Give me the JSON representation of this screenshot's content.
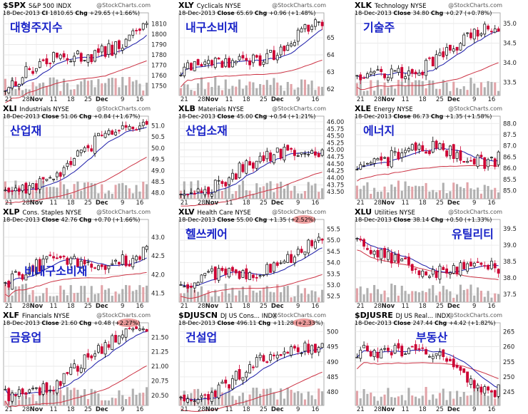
{
  "watermark": "@StockCharts.com",
  "colors": {
    "up": "#000000",
    "down": "#cc0033",
    "ma_short": "#1a1aa8",
    "ma_long": "#cc3344",
    "volume": "#b0b0b0",
    "label": "#1a24c8",
    "highlight": "#e05050"
  },
  "chart_data": [
    {
      "type": "candlestick",
      "symbol": "$SPX",
      "name": "S&P 500",
      "exchange": "INDX",
      "date": "18-Dec-2013",
      "price_label": "Cl",
      "price": "1810.65",
      "change": "+29.65 (+1.66%)",
      "korean_label": "대형주지수",
      "x_tick_labels": [
        "21",
        "28",
        "Nov",
        "11",
        "18",
        "25",
        "Dec",
        "9",
        "16"
      ],
      "y_tick_labels": [
        "1810",
        "1800",
        "1790",
        "1780",
        "1770",
        "1760",
        "1750"
      ],
      "y_ticks": [
        1810,
        1800,
        1790,
        1780,
        1770,
        1760,
        1750
      ],
      "ylim": [
        1742,
        1818
      ],
      "first_close": 1746,
      "last_close": 1810.6,
      "highlight_change": false
    },
    {
      "type": "candlestick",
      "symbol": "XLY",
      "name": "Cyclicals",
      "exchange": "NYSE",
      "date": "18-Dec-2013",
      "price_label": "Close",
      "price": "65.69",
      "change": "+0.96 (+1.48%)",
      "korean_label": "내구소비재",
      "x_tick_labels": [
        "21",
        "28",
        "Nov",
        "11",
        "18",
        "25",
        "Dec",
        "9",
        "16"
      ],
      "y_tick_labels": [
        "65",
        "64",
        "63",
        "62"
      ],
      "y_ticks": [
        65,
        64,
        63,
        62
      ],
      "ylim": [
        61.7,
        66.3
      ],
      "first_close": 62.5,
      "last_close": 65.7,
      "highlight_change": false
    },
    {
      "type": "candlestick",
      "symbol": "XLK",
      "name": "Technology",
      "exchange": "NYSE",
      "date": "18-Dec-2013",
      "price_label": "Close",
      "price": "34.80",
      "change": "+0.27 (+0.78%)",
      "korean_label": "기술주",
      "x_tick_labels": [
        "21",
        "28",
        "Nov",
        "11",
        "18",
        "25",
        "Dec",
        "9",
        "16"
      ],
      "y_tick_labels": [
        "35.0",
        "34.5",
        "34.0",
        "33.5"
      ],
      "y_ticks": [
        35.0,
        34.5,
        34.0,
        33.5
      ],
      "ylim": [
        33.2,
        35.2
      ],
      "first_close": 33.5,
      "last_close": 34.8,
      "highlight_change": false
    },
    {
      "type": "candlestick",
      "symbol": "XLI",
      "name": "Industrials",
      "exchange": "NYSE",
      "date": "18-Dec-2013",
      "price_label": "Close",
      "price": "51.06",
      "change": "+0.84 (+1.67%)",
      "korean_label": "산업재",
      "x_tick_labels": [
        "21",
        "28",
        "Nov",
        "11",
        "18",
        "25",
        "Dec",
        "9",
        "16"
      ],
      "y_tick_labels": [
        "51.0",
        "50.5",
        "50.0",
        "49.5",
        "49.0",
        "48.5",
        "48.0"
      ],
      "y_ticks": [
        51.0,
        50.5,
        50.0,
        49.5,
        49.0,
        48.5,
        48.0
      ],
      "ylim": [
        47.8,
        51.3
      ],
      "first_close": 48.1,
      "last_close": 51.06,
      "highlight_change": false
    },
    {
      "type": "candlestick",
      "symbol": "XLB",
      "name": "Materials",
      "exchange": "NYSE",
      "date": "18-Dec-2013",
      "price_label": "Close",
      "price": "45.00",
      "change": "+0.54 (+1.21%)",
      "korean_label": "산업소재",
      "x_tick_labels": [
        "21",
        "28",
        "Nov",
        "11",
        "18",
        "25",
        "Dec",
        "9",
        "16"
      ],
      "y_tick_labels": [
        "46.00",
        "45.75",
        "45.50",
        "45.25",
        "45.00",
        "44.75",
        "44.50",
        "44.25",
        "44.00",
        "43.75",
        "43.50"
      ],
      "y_ticks": [
        46.0,
        45.75,
        45.5,
        45.25,
        45.0,
        44.75,
        44.5,
        44.25,
        44.0,
        43.75,
        43.5
      ],
      "ylim": [
        43.3,
        46.1
      ],
      "first_close": 43.6,
      "last_close": 45.0,
      "highlight_change": false
    },
    {
      "type": "candlestick",
      "symbol": "XLE",
      "name": "Energy",
      "exchange": "NYSE",
      "date": "18-Dec-2013",
      "price_label": "Close",
      "price": "86.73",
      "change": "+1.35 (+1.58%)",
      "korean_label": "에너지",
      "x_tick_labels": [
        "21",
        "28",
        "Nov",
        "11",
        "18",
        "25",
        "Dec",
        "9",
        "16"
      ],
      "y_tick_labels": [
        "88.0",
        "87.5",
        "87.0",
        "86.5",
        "86.0",
        "85.5",
        "85.0"
      ],
      "y_ticks": [
        88.0,
        87.5,
        87.0,
        86.5,
        86.0,
        85.5,
        85.0
      ],
      "ylim": [
        84.7,
        88.2
      ],
      "first_close": 86.3,
      "last_close": 86.73,
      "highlight_change": false
    },
    {
      "type": "candlestick",
      "symbol": "XLP",
      "name": "Cons. Staples",
      "exchange": "NYSE",
      "date": "18-Dec-2013",
      "price_label": "Close",
      "price": "42.76",
      "change": "+0.70 (+1.66%)",
      "korean_label": "비내구소비재",
      "x_tick_labels": [
        "21",
        "28",
        "Nov",
        "11",
        "18",
        "25",
        "Dec",
        "9",
        "16"
      ],
      "y_tick_labels": [
        "43.0",
        "42.5",
        "42.0",
        "41.5"
      ],
      "y_ticks": [
        43.0,
        42.5,
        42.0,
        41.5
      ],
      "ylim": [
        41.3,
        43.4
      ],
      "first_close": 41.8,
      "last_close": 42.76,
      "highlight_change": false
    },
    {
      "type": "candlestick",
      "symbol": "XLV",
      "name": "Health Care",
      "exchange": "NYSE",
      "date": "18-Dec-2013",
      "price_label": "Close",
      "price": "55.00",
      "change": "+1.35 (+2.52%)",
      "korean_label": "헬쓰케어",
      "x_tick_labels": [
        "21",
        "28",
        "Nov",
        "11",
        "18",
        "25",
        "Dec",
        "9",
        "16"
      ],
      "y_tick_labels": [
        "55.5",
        "55.0",
        "54.5",
        "54.0",
        "53.5",
        "53.0",
        "52.5"
      ],
      "y_ticks": [
        55.5,
        55.0,
        54.5,
        54.0,
        53.5,
        53.0,
        52.5
      ],
      "ylim": [
        52.3,
        55.8
      ],
      "first_close": 52.6,
      "last_close": 55.0,
      "highlight_change": true
    },
    {
      "type": "candlestick",
      "symbol": "XLU",
      "name": "Utilities",
      "exchange": "NYSE",
      "date": "18-Dec-2013",
      "price_label": "Close",
      "price": "38.14",
      "change": "+0.50 (+1.33%)",
      "korean_label": "유틸리티",
      "x_tick_labels": [
        "21",
        "28",
        "Nov",
        "11",
        "18",
        "25",
        "Dec",
        "9",
        "16"
      ],
      "y_tick_labels": [
        "39.5",
        "39.0",
        "38.5",
        "38.0",
        "37.5"
      ],
      "y_ticks": [
        39.5,
        39.0,
        38.5,
        38.0,
        37.5
      ],
      "ylim": [
        37.3,
        39.7
      ],
      "first_close": 38.8,
      "last_close": 38.14,
      "highlight_change": false
    },
    {
      "type": "candlestick",
      "symbol": "XLF",
      "name": "Financials",
      "exchange": "NYSE",
      "date": "18-Dec-2013",
      "price_label": "Close",
      "price": "21.60",
      "change": "+0.48 (+2.27%)",
      "korean_label": "금융업",
      "x_tick_labels": [
        "21",
        "28",
        "Nov",
        "11",
        "18",
        "25",
        "Dec",
        "9",
        "16"
      ],
      "y_tick_labels": [
        "21.50",
        "21.25",
        "21.00",
        "20.75",
        "20.50"
      ],
      "y_ticks": [
        21.5,
        21.25,
        21.0,
        20.75,
        20.5
      ],
      "ylim": [
        20.35,
        21.7
      ],
      "first_close": 20.45,
      "last_close": 21.6,
      "highlight_change": true
    },
    {
      "type": "candlestick",
      "symbol": "$DJUSCN",
      "name": "DJ US Cons...",
      "exchange": "INDX",
      "date": "18-Dec-2013",
      "price_label": "Close",
      "price": "496.11",
      "change": "+11.28 (+2.33%)",
      "korean_label": "건설업",
      "x_tick_labels": [
        "21",
        "28",
        "Nov",
        "11",
        "18",
        "25",
        "Dec",
        "9",
        "16"
      ],
      "y_tick_labels": [
        "500",
        "495",
        "490",
        "485",
        "480"
      ],
      "y_ticks": [
        500,
        495,
        490,
        485,
        480
      ],
      "ylim": [
        476,
        502
      ],
      "first_close": 478,
      "last_close": 496.1,
      "highlight_change": true
    },
    {
      "type": "candlestick",
      "symbol": "$DJUSRE",
      "name": "DJ US Real...",
      "exchange": "INDX",
      "date": "18-Dec-2013",
      "price_label": "Close",
      "price": "247.44",
      "change": "+4.42 (+1.82%)",
      "korean_label": "부동산",
      "x_tick_labels": [
        "21",
        "28",
        "Nov",
        "11",
        "18",
        "25",
        "Dec",
        "9",
        "16"
      ],
      "y_tick_labels": [
        "265",
        "260",
        "255",
        "250",
        "245"
      ],
      "y_ticks": [
        265,
        260,
        255,
        250,
        245
      ],
      "ylim": [
        241,
        267
      ],
      "first_close": 262,
      "last_close": 247.4,
      "highlight_change": false
    }
  ]
}
